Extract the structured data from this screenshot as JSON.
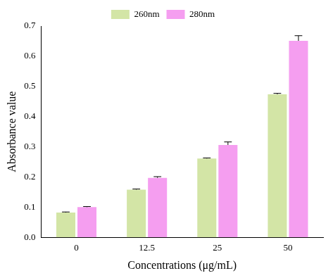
{
  "chart_data": {
    "type": "bar",
    "x_label": "Concentrations (μg/mL)",
    "y_label": "Absorbance value",
    "categories": [
      "0",
      "12.5",
      "25",
      "50"
    ],
    "series": [
      {
        "name": "260nm",
        "color": "#d3e5a6",
        "values": [
          0.082,
          0.158,
          0.261,
          0.474
        ],
        "errors": [
          0.002,
          0.002,
          0.002,
          0.003
        ]
      },
      {
        "name": "280nm",
        "color": "#f59ef0",
        "values": [
          0.1,
          0.197,
          0.306,
          0.651
        ],
        "errors": [
          0.002,
          0.004,
          0.01,
          0.017
        ]
      }
    ],
    "ylim": [
      0,
      0.7
    ],
    "yticks": [
      {
        "value": 0,
        "label": "0.0"
      },
      0.1,
      0.2,
      0.3,
      0.4,
      0.5,
      0.6,
      0.7
    ],
    "grid": false,
    "legend": "top"
  }
}
